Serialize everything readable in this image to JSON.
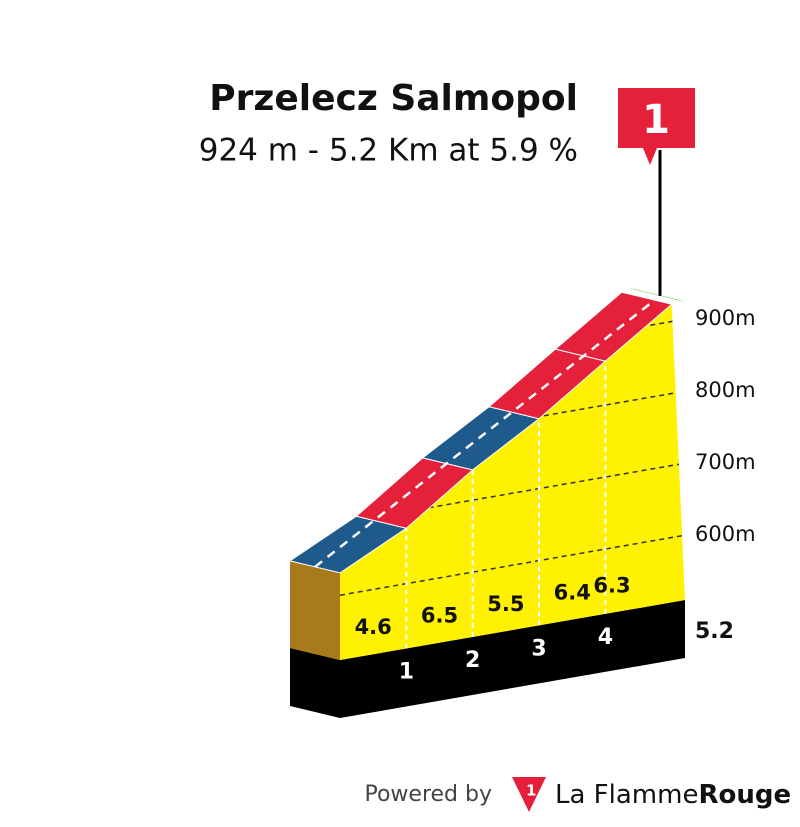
{
  "chart_data": {
    "type": "climb-profile",
    "title": "Przelecz Salmopol",
    "subtitle": "924 m - 5.2 Km at 5.9 %",
    "flag_label": "1",
    "summit_elevation": 924,
    "xlim": [
      0,
      5.2
    ],
    "xticks": [
      1,
      2,
      3,
      4
    ],
    "ylim": [
      510,
      950
    ],
    "yticks": [
      {
        "value": 600,
        "label": "600m"
      },
      {
        "value": 700,
        "label": "700m"
      },
      {
        "value": 800,
        "label": "800m"
      },
      {
        "value": 900,
        "label": "900m"
      }
    ],
    "grid": true,
    "values": [
      4.6,
      6.5,
      5.5,
      6.4,
      6.3
    ],
    "colors": [
      "#1f5a8c",
      "#e5203a",
      "#1f5a8c",
      "#e5203a",
      "#e5203a"
    ],
    "footer": {
      "powered": "Powered by",
      "brand_light": "La Flamme",
      "brand_bold": "Rouge"
    }
  }
}
